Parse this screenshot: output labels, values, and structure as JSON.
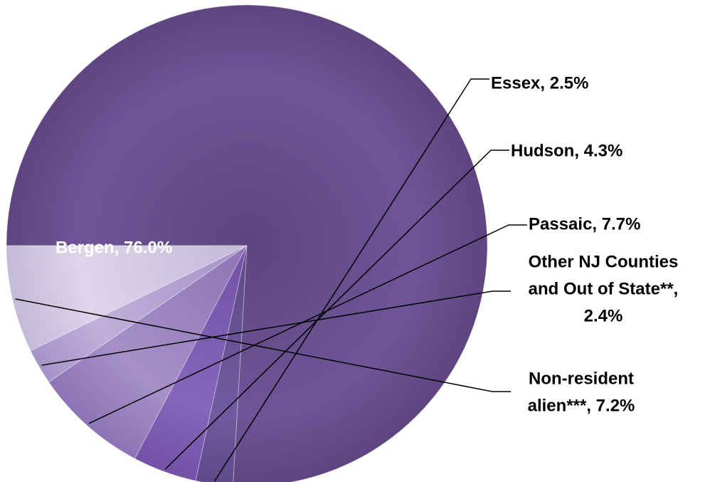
{
  "chart_data": {
    "type": "pie",
    "title": "",
    "start_angle_deg": 180,
    "direction": "clockwise",
    "slices": [
      {
        "name": "Bergen",
        "value": 76.0,
        "label_lines": [
          "Bergen, 76.0%"
        ],
        "color": "#5e4580",
        "color_light": "#6f5597",
        "label_inside": true
      },
      {
        "name": "Essex",
        "value": 2.5,
        "label_lines": [
          "Essex, 2.5%"
        ],
        "color": "#5e4a88",
        "color_light": "#705ba0",
        "label_inside": false
      },
      {
        "name": "Hudson",
        "value": 4.3,
        "label_lines": [
          "Hudson, 4.3%"
        ],
        "color": "#7251a6",
        "color_light": "#8566bb",
        "label_inside": false
      },
      {
        "name": "Passaic",
        "value": 7.7,
        "label_lines": [
          "Passaic, 7.7%"
        ],
        "color": "#8d74b5",
        "color_light": "#a690c7",
        "label_inside": false
      },
      {
        "name": "Other NJ Counties and Out of State**",
        "value": 2.4,
        "label_lines": [
          "Other NJ Counties",
          "and Out of State**,",
          "2.4%"
        ],
        "color": "#a593c8",
        "color_light": "#bfb0da",
        "label_inside": false
      },
      {
        "name": "Non-resident alien***",
        "value": 7.2,
        "label_lines": [
          "Non-resident",
          "alien***, 7.2%"
        ],
        "color": "#c3b9d9",
        "color_light": "#ddd5ea",
        "label_inside": false
      }
    ],
    "legend": "none"
  }
}
